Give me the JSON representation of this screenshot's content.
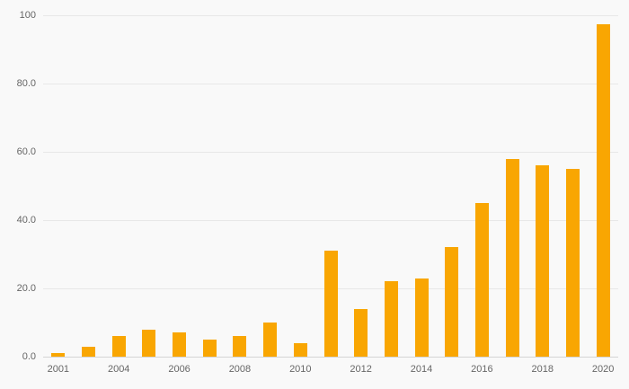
{
  "chart_data": {
    "type": "bar",
    "title": "",
    "xlabel": "",
    "ylabel": "",
    "categories": [
      "2001",
      "2003",
      "2004",
      "2005",
      "2006",
      "2007",
      "2008",
      "2009",
      "2010",
      "2011",
      "2012",
      "2013",
      "2014",
      "2015",
      "2016",
      "2017",
      "2018",
      "2019",
      "2020"
    ],
    "values": [
      1,
      3,
      6,
      8,
      7,
      5,
      6,
      10,
      4,
      31,
      14,
      22,
      23,
      32,
      45,
      58,
      56,
      55,
      97.5
    ],
    "x_ticks": [
      {
        "index": 0,
        "label": "2001"
      },
      {
        "index": 2,
        "label": "2004"
      },
      {
        "index": 4,
        "label": "2006"
      },
      {
        "index": 6,
        "label": "2008"
      },
      {
        "index": 8,
        "label": "2010"
      },
      {
        "index": 10,
        "label": "2012"
      },
      {
        "index": 12,
        "label": "2014"
      },
      {
        "index": 14,
        "label": "2016"
      },
      {
        "index": 16,
        "label": "2018"
      },
      {
        "index": 18,
        "label": "2020"
      }
    ],
    "y_ticks": [
      {
        "value": 0,
        "label": "0.0"
      },
      {
        "value": 20,
        "label": "20.0"
      },
      {
        "value": 40,
        "label": "40.0"
      },
      {
        "value": 60,
        "label": "60.0"
      },
      {
        "value": 80,
        "label": "80.0"
      },
      {
        "value": 100,
        "label": "100"
      }
    ],
    "ylim": [
      0,
      100
    ],
    "grid": "horizontal",
    "legend": "none",
    "bar_color": "#F9A602",
    "background_color": "#f9f9f9",
    "axis_text_color": "#666666"
  }
}
